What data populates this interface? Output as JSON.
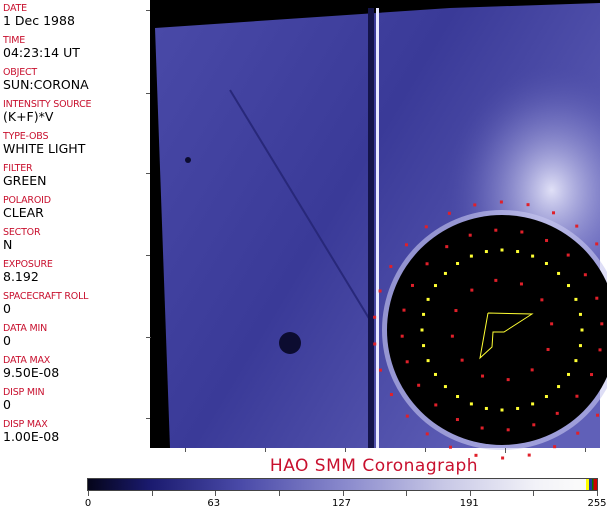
{
  "header_fields": [
    {
      "label": "DATE",
      "value": "1 Dec 1988"
    },
    {
      "label": "TIME",
      "value": "04:23:14 UT"
    },
    {
      "label": "OBJECT",
      "value": "SUN:CORONA"
    },
    {
      "label": "INTENSITY SOURCE",
      "value": "(K+F)*V"
    },
    {
      "label": "TYPE-OBS",
      "value": "WHITE LIGHT"
    },
    {
      "label": "FILTER",
      "value": "GREEN"
    },
    {
      "label": "POLAROID",
      "value": "CLEAR"
    },
    {
      "label": "SECTOR",
      "value": "N"
    },
    {
      "label": "EXPOSURE",
      "value": "8.192"
    },
    {
      "label": "SPACECRAFT ROLL",
      "value": "0"
    },
    {
      "label": "DATA MIN",
      "value": "0"
    },
    {
      "label": "DATA MAX",
      "value": "9.50E-08"
    },
    {
      "label": "DISP MIN",
      "value": "0"
    },
    {
      "label": "DISP MAX",
      "value": "1.00E-08"
    }
  ],
  "title": "HAO   SMM Coronagraph",
  "colorbar": {
    "ticks": [
      "0",
      "63",
      "127",
      "191",
      "255"
    ],
    "min": 0,
    "max": 255
  },
  "colors": {
    "label": "#c8102e",
    "overlay_red": "#e0202a",
    "overlay_yellow": "#ffff33"
  }
}
